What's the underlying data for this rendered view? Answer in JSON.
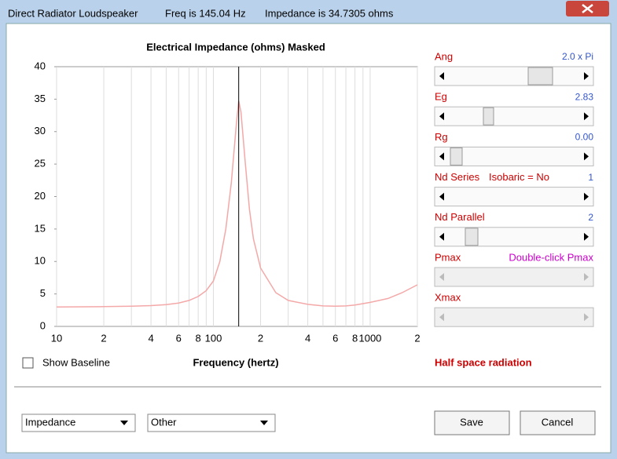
{
  "window": {
    "title": "Direct Radiator Loudspeaker",
    "freq": "Freq is 145.04 Hz",
    "impedance": "Impedance is 34.7305 ohms"
  },
  "chart_data": {
    "type": "line",
    "title": "Electrical Impedance (ohms)   Masked",
    "x_label": "Frequency (hertz)",
    "xscale": "log",
    "xlim": [
      10,
      2000
    ],
    "ylim": [
      0,
      40
    ],
    "xticks": [
      10,
      {
        "value": 20,
        "label": "2"
      },
      {
        "value": 40,
        "label": "4"
      },
      {
        "value": 60,
        "label": "6"
      },
      {
        "value": 80,
        "label": "8"
      },
      100,
      {
        "value": 200,
        "label": "2"
      },
      {
        "value": 400,
        "label": "4"
      },
      {
        "value": 600,
        "label": "6"
      },
      {
        "value": 800,
        "label": "8"
      },
      1000,
      {
        "value": 2000,
        "label": "2"
      }
    ],
    "xgrid_minor": [
      30,
      50,
      70,
      90,
      300,
      500,
      700,
      900
    ],
    "yticks": [
      0,
      5,
      10,
      15,
      20,
      25,
      30,
      35,
      40
    ],
    "grid": true,
    "color": "#f4a8a8",
    "cursor_x": 145.04,
    "x": [
      10,
      20,
      30,
      40,
      50,
      60,
      70,
      80,
      90,
      100,
      110,
      120,
      130,
      140,
      145.04,
      150,
      160,
      170,
      180,
      200,
      250,
      300,
      400,
      500,
      600,
      700,
      800,
      1000,
      1300,
      1600,
      2000
    ],
    "values": [
      3.0,
      3.05,
      3.1,
      3.2,
      3.35,
      3.6,
      4.0,
      4.6,
      5.5,
      7.0,
      10,
      15,
      22,
      31,
      34.73,
      33,
      25,
      18,
      13.5,
      9,
      5.2,
      4.0,
      3.4,
      3.15,
      3.1,
      3.15,
      3.3,
      3.7,
      4.3,
      5.2,
      6.4
    ]
  },
  "controls": {
    "sliders": [
      {
        "label": "Ang",
        "value": "2.0 x Pi"
      },
      {
        "label": "Eg",
        "value": "2.83"
      },
      {
        "label": "Rg",
        "value": "0.00"
      },
      {
        "label": "Nd Series",
        "extra": "Isobaric = No",
        "value": "1"
      },
      {
        "label": "Nd  Parallel",
        "value": "2"
      },
      {
        "label": "Pmax",
        "value": "Double-click Pmax"
      },
      {
        "label": "Xmax"
      }
    ],
    "checkbox": "Show Baseline",
    "note": "Half space radiation",
    "dropdowns": [
      "Impedance",
      "Other"
    ],
    "buttons": [
      "Save",
      "Cancel"
    ]
  }
}
